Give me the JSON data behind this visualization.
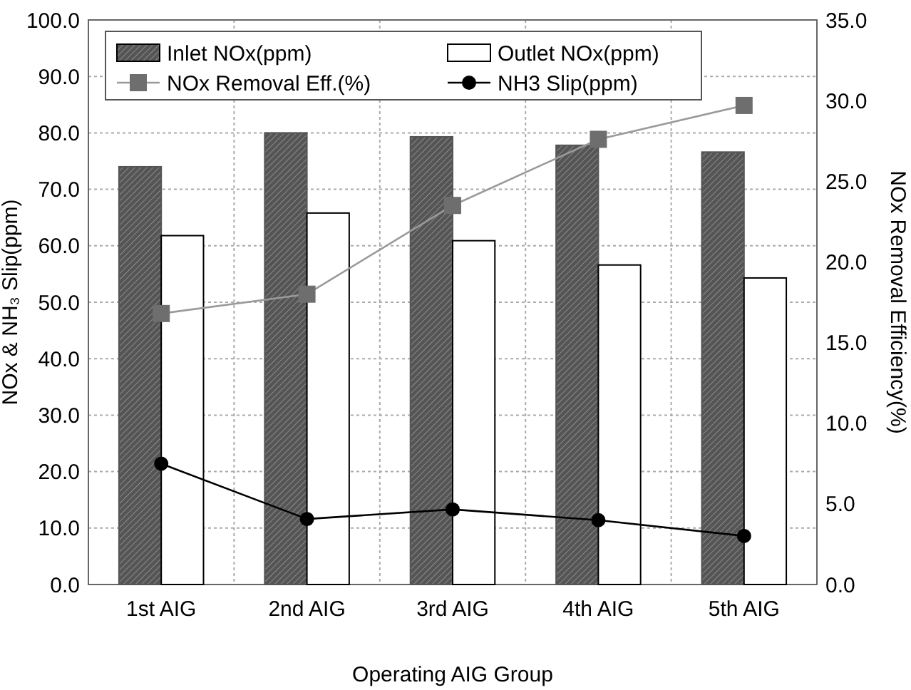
{
  "chart_data": {
    "type": "bar",
    "xlabel": "Operating AIG Group",
    "ylabel": "NOx & NH₃ Slip(ppm)",
    "y2label": "NOx Removal Efficiency(%)",
    "categories": [
      "1st AIG",
      "2nd AIG",
      "3rd AIG",
      "4th AIG",
      "5th AIG"
    ],
    "series": [
      {
        "name": "Inlet NOx(ppm)",
        "color": "#555555",
        "values": [
          74.0,
          80.0,
          79.3,
          77.8,
          76.6
        ]
      },
      {
        "name": "Outlet NOx(ppm)",
        "color": "#ffffff",
        "values": [
          61.8,
          65.8,
          60.9,
          56.6,
          54.3
        ]
      },
      {
        "name": "NOx Removal Eff.(%)",
        "type": "line",
        "axis": "y2",
        "color": "#9a9a9a",
        "marker": "square",
        "values": [
          16.8,
          18.0,
          23.5,
          27.6,
          29.7
        ]
      },
      {
        "name": "NH3 Slip(ppm)",
        "type": "line",
        "color": "#000000",
        "marker": "circle",
        "values": [
          21.4,
          11.6,
          13.3,
          11.4,
          8.6
        ]
      }
    ],
    "ylim": [
      0,
      100
    ],
    "yticks": [
      {
        "value": 0,
        "label": "0.0"
      },
      {
        "value": 10,
        "label": "10.0"
      },
      {
        "value": 20,
        "label": "20.0"
      },
      {
        "value": 30,
        "label": "30.0"
      },
      {
        "value": 40,
        "label": "40.0"
      },
      {
        "value": 50,
        "label": "50.0"
      },
      {
        "value": 60,
        "label": "60.0"
      },
      {
        "value": 70,
        "label": "70.0"
      },
      {
        "value": 80,
        "label": "80.0"
      },
      {
        "value": 90,
        "label": "90.0"
      },
      {
        "value": 100,
        "label": "100.0"
      }
    ],
    "y2lim": [
      0,
      35
    ],
    "y2ticks": [
      {
        "value": 0,
        "label": "0.0"
      },
      {
        "value": 5,
        "label": "5.0"
      },
      {
        "value": 10,
        "label": "10.0"
      },
      {
        "value": 15,
        "label": "15.0"
      },
      {
        "value": 20,
        "label": "20.0"
      },
      {
        "value": 25,
        "label": "25.0"
      },
      {
        "value": 30,
        "label": "30.0"
      },
      {
        "value": 35,
        "label": "35.0"
      }
    ],
    "grid": true,
    "legend": "top"
  }
}
